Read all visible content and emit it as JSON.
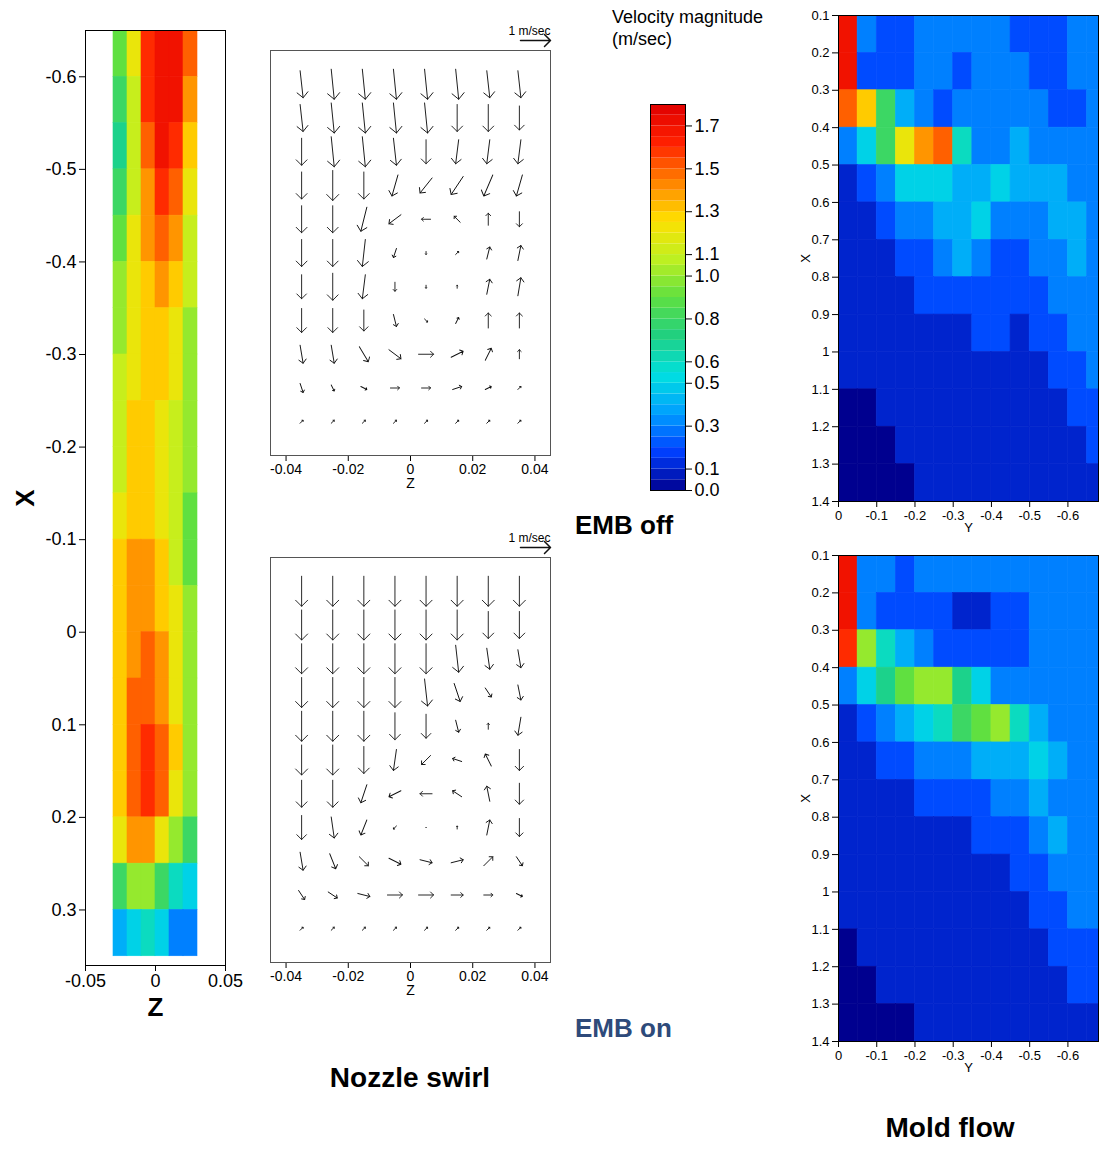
{
  "labels": {
    "emb_off": "EMB off",
    "emb_on": "EMB on",
    "nozzle_swirl": "Nozzle swirl",
    "mold_flow": "Mold flow"
  },
  "colorbar": {
    "title": "Velocity magnitude (m/sec)",
    "range": [
      0,
      1.8
    ],
    "ticks": [
      1.7,
      1.5,
      1.3,
      1.1,
      {
        "value": 1,
        "label": "1.0"
      },
      0.8,
      0.6,
      0.5,
      0.3,
      0.1,
      {
        "value": 0,
        "label": "0.0"
      }
    ]
  },
  "chart_data": [
    {
      "type": "heatmap",
      "xlabel": "Z",
      "ylabel": "X",
      "xlim": [
        -0.05,
        0.05
      ],
      "ylim": [
        0.36,
        -0.65
      ],
      "xticks": [
        -0.05,
        0,
        0.05
      ],
      "yticks": [
        -0.6,
        -0.5,
        -0.4,
        -0.3,
        -0.2,
        -0.1,
        0,
        0.1,
        0.2,
        0.3
      ],
      "x": [
        -0.025,
        -0.015,
        -0.005,
        0.005,
        0.015,
        0.025
      ],
      "y": [
        -0.625,
        -0.575,
        -0.525,
        -0.475,
        -0.425,
        -0.375,
        -0.325,
        -0.275,
        -0.225,
        -0.175,
        -0.125,
        -0.075,
        -0.025,
        0.025,
        0.075,
        0.125,
        0.175,
        0.225,
        0.275,
        0.325
      ],
      "values": [
        [
          0.9,
          1.2,
          1.6,
          1.7,
          1.7,
          1.5
        ],
        [
          0.8,
          1.1,
          1.6,
          1.7,
          1.7,
          1.4
        ],
        [
          0.7,
          1.1,
          1.5,
          1.7,
          1.6,
          1.3
        ],
        [
          0.8,
          1.1,
          1.4,
          1.6,
          1.5,
          1.2
        ],
        [
          0.9,
          1.2,
          1.4,
          1.5,
          1.4,
          1.1
        ],
        [
          1.0,
          1.2,
          1.3,
          1.4,
          1.3,
          1.1
        ],
        [
          1.0,
          1.2,
          1.3,
          1.3,
          1.2,
          1.0
        ],
        [
          1.1,
          1.2,
          1.3,
          1.3,
          1.2,
          1.0
        ],
        [
          1.1,
          1.3,
          1.3,
          1.2,
          1.1,
          1.0
        ],
        [
          1.1,
          1.3,
          1.3,
          1.2,
          1.1,
          1.0
        ],
        [
          1.2,
          1.3,
          1.3,
          1.2,
          1.1,
          0.9
        ],
        [
          1.3,
          1.4,
          1.4,
          1.3,
          1.1,
          0.9
        ],
        [
          1.3,
          1.4,
          1.4,
          1.3,
          1.2,
          1.0
        ],
        [
          1.3,
          1.4,
          1.5,
          1.4,
          1.2,
          1.0
        ],
        [
          1.3,
          1.5,
          1.5,
          1.4,
          1.2,
          1.0
        ],
        [
          1.3,
          1.5,
          1.6,
          1.5,
          1.3,
          1.0
        ],
        [
          1.3,
          1.5,
          1.6,
          1.5,
          1.2,
          1.0
        ],
        [
          1.2,
          1.4,
          1.4,
          1.2,
          1.0,
          0.8
        ],
        [
          0.8,
          1.0,
          1.0,
          0.8,
          0.6,
          0.5
        ],
        [
          0.4,
          0.5,
          0.6,
          0.5,
          0.3,
          0.3
        ]
      ]
    },
    {
      "type": "vector",
      "title": "EMB off",
      "xlabel": "Z",
      "tick_labels": "x",
      "xlim": [
        -0.045,
        0.045
      ],
      "ylim": [
        0,
        0.12
      ],
      "xticks": [
        -0.04,
        -0.02,
        0,
        0.02,
        0.04
      ],
      "reference": {
        "value": 1,
        "label": "1 m/sec"
      },
      "x": [
        -0.035,
        -0.025,
        -0.015,
        -0.005,
        0.005,
        0.015,
        0.025,
        0.035
      ],
      "y": [
        0.11,
        0.1,
        0.09,
        0.08,
        0.07,
        0.06,
        0.05,
        0.04,
        0.03,
        0.02,
        0.01
      ],
      "u": [
        [
          0.1,
          0.1,
          0.1,
          0.1,
          0.1,
          0.1,
          0.1,
          0.1
        ],
        [
          0.1,
          0.1,
          0.1,
          0.1,
          0.1,
          0.0,
          0.0,
          0.0
        ],
        [
          0.0,
          0.1,
          0.1,
          0.1,
          0.0,
          -0.1,
          -0.1,
          -0.1
        ],
        [
          0.0,
          0.0,
          0.0,
          -0.2,
          -0.4,
          -0.4,
          -0.3,
          -0.2
        ],
        [
          0.0,
          0.0,
          -0.2,
          -0.4,
          -0.3,
          -0.2,
          0.0,
          0.0
        ],
        [
          0.0,
          0.0,
          -0.1,
          -0.1,
          0.0,
          0.1,
          0.1,
          0.1
        ],
        [
          0.0,
          0.0,
          -0.1,
          0.0,
          0.0,
          0.0,
          0.1,
          0.1
        ],
        [
          0.0,
          0.0,
          0.0,
          0.1,
          0.1,
          0.1,
          0.0,
          0.0
        ],
        [
          0.1,
          0.1,
          0.3,
          0.4,
          0.5,
          0.4,
          0.2,
          0.0
        ],
        [
          0.1,
          0.1,
          0.2,
          0.3,
          0.3,
          0.3,
          0.2,
          0.1
        ],
        [
          0.1,
          0.1,
          0.1,
          0.1,
          0.1,
          0.1,
          0.1,
          0.1
        ]
      ],
      "v": [
        [
          -0.9,
          -1.0,
          -1.0,
          -1.0,
          -1.0,
          -1.0,
          -0.9,
          -0.9
        ],
        [
          -0.9,
          -1.0,
          -1.0,
          -1.0,
          -1.0,
          -0.9,
          -0.9,
          -0.8
        ],
        [
          -0.9,
          -1.0,
          -1.0,
          -0.9,
          -0.8,
          -0.8,
          -0.8,
          -0.8
        ],
        [
          -0.9,
          -1.0,
          -0.9,
          -0.7,
          -0.5,
          -0.6,
          -0.7,
          -0.7
        ],
        [
          -0.9,
          -0.9,
          -0.8,
          -0.3,
          0.0,
          0.2,
          0.4,
          -0.5
        ],
        [
          -0.9,
          -0.9,
          -0.9,
          -0.3,
          -0.1,
          0.1,
          0.4,
          0.5
        ],
        [
          -0.8,
          -0.9,
          -0.8,
          -0.3,
          -0.1,
          0.1,
          0.5,
          0.6
        ],
        [
          -0.8,
          -0.8,
          -0.7,
          -0.4,
          -0.1,
          0.2,
          0.5,
          0.5
        ],
        [
          -0.6,
          -0.6,
          -0.5,
          -0.3,
          0.0,
          0.2,
          0.4,
          0.3
        ],
        [
          -0.3,
          -0.2,
          -0.1,
          0.0,
          0.0,
          0.1,
          0.1,
          0.1
        ],
        [
          0.1,
          0.1,
          0.1,
          0.1,
          0.1,
          0.1,
          0.1,
          0.1
        ]
      ]
    },
    {
      "type": "vector",
      "title": "EMB on",
      "xlabel": "Z",
      "tick_labels": "x",
      "xlim": [
        -0.045,
        0.045
      ],
      "ylim": [
        0,
        0.12
      ],
      "xticks": [
        -0.04,
        -0.02,
        0,
        0.02,
        0.04
      ],
      "reference": {
        "value": 1,
        "label": "1 m/sec"
      },
      "x": [
        -0.035,
        -0.025,
        -0.015,
        -0.005,
        0.005,
        0.015,
        0.025,
        0.035
      ],
      "y": [
        0.11,
        0.1,
        0.09,
        0.08,
        0.07,
        0.06,
        0.05,
        0.04,
        0.03,
        0.02,
        0.01
      ],
      "u": [
        [
          0.0,
          0.0,
          0.0,
          0.0,
          0.0,
          0.0,
          0.0,
          0.0
        ],
        [
          0.0,
          0.0,
          0.0,
          0.0,
          0.0,
          0.0,
          0.0,
          0.0
        ],
        [
          0.0,
          0.0,
          0.0,
          0.0,
          0.0,
          0.1,
          0.1,
          0.1
        ],
        [
          0.0,
          0.0,
          0.0,
          0.0,
          0.1,
          0.2,
          0.2,
          0.1
        ],
        [
          0.0,
          0.0,
          0.0,
          0.0,
          0.0,
          0.1,
          0.0,
          -0.1
        ],
        [
          0.0,
          0.0,
          0.0,
          -0.1,
          -0.3,
          -0.3,
          -0.2,
          0.0
        ],
        [
          0.0,
          0.0,
          -0.2,
          -0.4,
          -0.4,
          -0.3,
          -0.1,
          0.0
        ],
        [
          0.0,
          0.1,
          -0.2,
          -0.1,
          0.0,
          0.0,
          0.1,
          0.0
        ],
        [
          0.1,
          0.2,
          0.3,
          0.4,
          0.4,
          0.4,
          0.3,
          0.2
        ],
        [
          0.2,
          0.3,
          0.4,
          0.5,
          0.5,
          0.4,
          0.3,
          0.2
        ],
        [
          0.1,
          0.1,
          0.1,
          0.1,
          0.1,
          0.1,
          0.1,
          0.1
        ]
      ],
      "v": [
        [
          -1.0,
          -1.0,
          -1.0,
          -1.0,
          -1.0,
          -1.0,
          -1.0,
          -1.0
        ],
        [
          -1.0,
          -1.0,
          -1.0,
          -1.0,
          -1.0,
          -1.0,
          -0.9,
          -0.9
        ],
        [
          -1.0,
          -1.0,
          -1.0,
          -1.0,
          -1.0,
          -0.9,
          -0.7,
          -0.6
        ],
        [
          -1.0,
          -1.0,
          -1.0,
          -1.0,
          -0.9,
          -0.6,
          -0.3,
          -0.5
        ],
        [
          -1.0,
          -1.0,
          -1.0,
          -0.9,
          -0.8,
          -0.4,
          0.2,
          -0.6
        ],
        [
          -1.0,
          -1.0,
          -0.9,
          -0.7,
          -0.3,
          0.1,
          0.4,
          -0.7
        ],
        [
          -0.9,
          -0.9,
          -0.6,
          -0.2,
          0.0,
          0.2,
          0.5,
          -0.7
        ],
        [
          -0.8,
          -0.7,
          -0.5,
          -0.1,
          0.0,
          0.1,
          0.5,
          -0.6
        ],
        [
          -0.6,
          -0.5,
          -0.3,
          -0.2,
          -0.1,
          0.1,
          0.3,
          -0.3
        ],
        [
          -0.3,
          -0.2,
          -0.1,
          0.0,
          0.0,
          0.0,
          0.0,
          -0.1
        ],
        [
          0.1,
          0.1,
          0.1,
          0.1,
          0.1,
          0.1,
          0.1,
          0.1
        ]
      ]
    },
    {
      "type": "heatmap",
      "title": "EMB off",
      "xlabel": "Y",
      "ylabel": "X",
      "xlim": [
        0,
        -0.68
      ],
      "ylim": [
        1.4,
        0.1
      ],
      "xticks": [
        0,
        -0.1,
        -0.2,
        -0.3,
        -0.4,
        -0.5,
        -0.6
      ],
      "yticks": [
        0.1,
        0.2,
        0.3,
        0.4,
        0.5,
        0.6,
        0.7,
        0.8,
        0.9,
        1,
        1.1,
        1.2,
        1.3,
        1.4
      ],
      "x": [
        -0.025,
        -0.075,
        -0.125,
        -0.175,
        -0.225,
        -0.275,
        -0.325,
        -0.375,
        -0.425,
        -0.475,
        -0.525,
        -0.575,
        -0.625,
        -0.675
      ],
      "y": [
        0.15,
        0.25,
        0.35,
        0.45,
        0.55,
        0.65,
        0.75,
        0.85,
        0.95,
        1.05,
        1.15,
        1.25,
        1.35
      ],
      "values": [
        [
          1.7,
          0.3,
          0.2,
          0.2,
          0.3,
          0.3,
          0.3,
          0.3,
          0.3,
          0.2,
          0.2,
          0.2,
          0.3,
          0.3
        ],
        [
          1.7,
          0.2,
          0.2,
          0.2,
          0.3,
          0.3,
          0.2,
          0.3,
          0.3,
          0.3,
          0.2,
          0.2,
          0.3,
          0.3
        ],
        [
          1.5,
          1.3,
          0.8,
          0.4,
          0.3,
          0.2,
          0.3,
          0.3,
          0.3,
          0.3,
          0.3,
          0.2,
          0.2,
          0.3
        ],
        [
          0.3,
          0.5,
          0.8,
          1.2,
          1.4,
          1.5,
          0.6,
          0.3,
          0.3,
          0.4,
          0.3,
          0.3,
          0.3,
          0.3
        ],
        [
          0.1,
          0.2,
          0.3,
          0.5,
          0.5,
          0.5,
          0.4,
          0.4,
          0.5,
          0.4,
          0.4,
          0.4,
          0.3,
          0.3
        ],
        [
          0.1,
          0.1,
          0.2,
          0.3,
          0.3,
          0.4,
          0.4,
          0.5,
          0.3,
          0.3,
          0.3,
          0.4,
          0.4,
          0.3
        ],
        [
          0.1,
          0.1,
          0.1,
          0.2,
          0.2,
          0.3,
          0.4,
          0.3,
          0.2,
          0.2,
          0.3,
          0.3,
          0.4,
          0.3
        ],
        [
          0.1,
          0.1,
          0.1,
          0.1,
          0.2,
          0.2,
          0.2,
          0.2,
          0.2,
          0.2,
          0.2,
          0.3,
          0.3,
          0.3
        ],
        [
          0.1,
          0.1,
          0.1,
          0.1,
          0.1,
          0.1,
          0.1,
          0.2,
          0.2,
          0.1,
          0.2,
          0.2,
          0.3,
          0.3
        ],
        [
          0.1,
          0.1,
          0.1,
          0.1,
          0.1,
          0.1,
          0.1,
          0.1,
          0.1,
          0.1,
          0.1,
          0.2,
          0.2,
          0.3
        ],
        [
          0.0,
          0.0,
          0.1,
          0.1,
          0.1,
          0.1,
          0.1,
          0.1,
          0.1,
          0.1,
          0.1,
          0.1,
          0.2,
          0.2
        ],
        [
          0.0,
          0.0,
          0.0,
          0.1,
          0.1,
          0.1,
          0.1,
          0.1,
          0.1,
          0.1,
          0.1,
          0.1,
          0.1,
          0.2
        ],
        [
          0.0,
          0.0,
          0.0,
          0.0,
          0.1,
          0.1,
          0.1,
          0.1,
          0.1,
          0.1,
          0.1,
          0.1,
          0.1,
          0.1
        ]
      ]
    },
    {
      "type": "heatmap",
      "title": "EMB on",
      "xlabel": "Y",
      "ylabel": "X",
      "xlim": [
        0,
        -0.68
      ],
      "ylim": [
        1.4,
        0.1
      ],
      "xticks": [
        0,
        -0.1,
        -0.2,
        -0.3,
        -0.4,
        -0.5,
        -0.6
      ],
      "yticks": [
        0.1,
        0.2,
        0.3,
        0.4,
        0.5,
        0.6,
        0.7,
        0.8,
        0.9,
        1,
        1.1,
        1.2,
        1.3,
        1.4
      ],
      "x": [
        -0.025,
        -0.075,
        -0.125,
        -0.175,
        -0.225,
        -0.275,
        -0.325,
        -0.375,
        -0.425,
        -0.475,
        -0.525,
        -0.575,
        -0.625,
        -0.675
      ],
      "y": [
        0.15,
        0.25,
        0.35,
        0.45,
        0.55,
        0.65,
        0.75,
        0.85,
        0.95,
        1.05,
        1.15,
        1.25,
        1.35
      ],
      "values": [
        [
          1.7,
          0.3,
          0.3,
          0.2,
          0.3,
          0.3,
          0.3,
          0.3,
          0.3,
          0.3,
          0.3,
          0.3,
          0.3,
          0.3
        ],
        [
          1.7,
          0.3,
          0.2,
          0.2,
          0.2,
          0.2,
          0.1,
          0.1,
          0.2,
          0.2,
          0.3,
          0.3,
          0.3,
          0.3
        ],
        [
          1.6,
          1.0,
          0.6,
          0.4,
          0.3,
          0.2,
          0.2,
          0.2,
          0.2,
          0.2,
          0.3,
          0.3,
          0.3,
          0.3
        ],
        [
          0.3,
          0.5,
          0.7,
          0.9,
          1.0,
          1.0,
          0.7,
          0.5,
          0.3,
          0.3,
          0.3,
          0.3,
          0.3,
          0.3
        ],
        [
          0.1,
          0.2,
          0.3,
          0.4,
          0.5,
          0.6,
          0.8,
          0.9,
          1.0,
          0.6,
          0.4,
          0.3,
          0.3,
          0.3
        ],
        [
          0.1,
          0.1,
          0.2,
          0.2,
          0.3,
          0.3,
          0.3,
          0.4,
          0.4,
          0.4,
          0.5,
          0.4,
          0.3,
          0.3
        ],
        [
          0.1,
          0.1,
          0.1,
          0.1,
          0.2,
          0.2,
          0.2,
          0.2,
          0.3,
          0.3,
          0.4,
          0.3,
          0.3,
          0.3
        ],
        [
          0.1,
          0.1,
          0.1,
          0.1,
          0.1,
          0.1,
          0.1,
          0.2,
          0.2,
          0.2,
          0.3,
          0.4,
          0.3,
          0.3
        ],
        [
          0.1,
          0.1,
          0.1,
          0.1,
          0.1,
          0.1,
          0.1,
          0.1,
          0.1,
          0.2,
          0.2,
          0.3,
          0.3,
          0.3
        ],
        [
          0.1,
          0.1,
          0.1,
          0.1,
          0.1,
          0.1,
          0.1,
          0.1,
          0.1,
          0.1,
          0.2,
          0.2,
          0.3,
          0.3
        ],
        [
          0.0,
          0.1,
          0.1,
          0.1,
          0.1,
          0.1,
          0.1,
          0.1,
          0.1,
          0.1,
          0.1,
          0.2,
          0.2,
          0.2
        ],
        [
          0.0,
          0.0,
          0.1,
          0.1,
          0.1,
          0.1,
          0.1,
          0.1,
          0.1,
          0.1,
          0.1,
          0.1,
          0.2,
          0.2
        ],
        [
          0.0,
          0.0,
          0.0,
          0.0,
          0.1,
          0.1,
          0.1,
          0.1,
          0.1,
          0.1,
          0.1,
          0.1,
          0.1,
          0.1
        ]
      ]
    }
  ]
}
